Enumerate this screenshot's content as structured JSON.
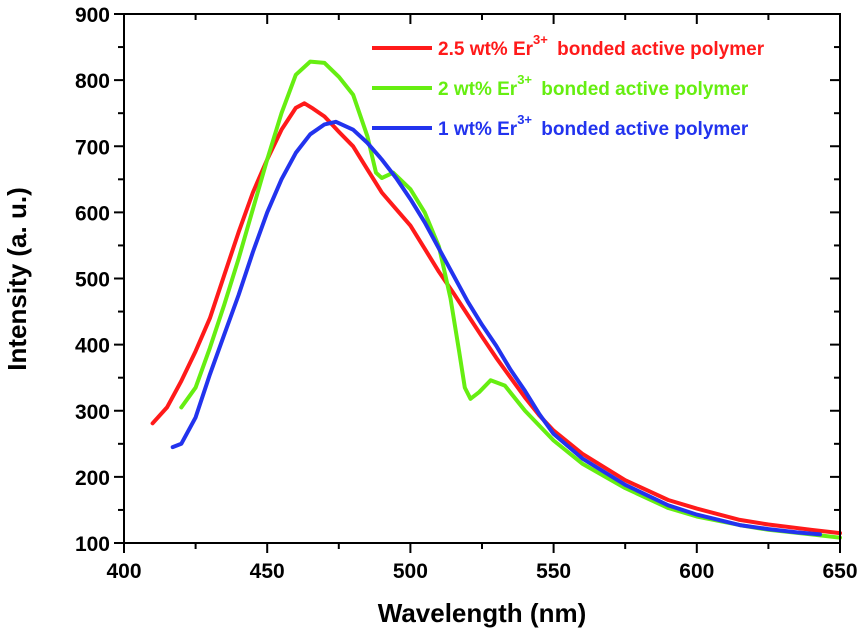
{
  "chart_data": {
    "type": "line",
    "title": "",
    "xlabel": "Wavelength (nm)",
    "ylabel": "Intensity (a. u.)",
    "xlim": [
      400,
      650
    ],
    "ylim": [
      100,
      900
    ],
    "xticks": [
      400,
      450,
      500,
      550,
      600,
      650
    ],
    "yticks": [
      100,
      200,
      300,
      400,
      500,
      600,
      700,
      800,
      900
    ],
    "grid": false,
    "legend_position": "top-right",
    "series": [
      {
        "name": "2.5 wt% Er3+ bonded active polymer",
        "label_prefix": "2.5 wt% Er",
        "label_sup": "3+",
        "label_suffix": " bonded active polymer",
        "color": "#ff1a1a",
        "x": [
          410,
          415,
          420,
          425,
          430,
          435,
          440,
          445,
          450,
          455,
          460,
          463,
          466,
          470,
          475,
          480,
          485,
          490,
          495,
          500,
          505,
          510,
          515,
          520,
          525,
          530,
          535,
          540,
          545,
          550,
          560,
          575,
          590,
          600,
          615,
          625,
          640,
          650
        ],
        "y": [
          281,
          305,
          345,
          390,
          440,
          505,
          570,
          630,
          680,
          725,
          758,
          765,
          757,
          745,
          722,
          700,
          665,
          630,
          605,
          580,
          545,
          510,
          478,
          445,
          412,
          380,
          350,
          320,
          293,
          270,
          235,
          195,
          165,
          152,
          135,
          128,
          120,
          115
        ]
      },
      {
        "name": "2 wt% Er3+ bonded active polymer",
        "label_prefix": "2 wt% Er",
        "label_sup": "3+",
        "label_suffix": " bonded active polymer",
        "color": "#66ee11",
        "x": [
          420,
          425,
          430,
          435,
          440,
          445,
          450,
          455,
          460,
          465,
          470,
          475,
          480,
          485,
          488,
          490,
          494,
          500,
          505,
          510,
          514,
          517,
          519,
          521,
          524,
          528,
          533,
          540,
          550,
          560,
          575,
          590,
          600,
          615,
          625,
          640,
          650
        ],
        "y": [
          305,
          335,
          395,
          460,
          530,
          605,
          680,
          750,
          808,
          828,
          826,
          805,
          778,
          715,
          660,
          652,
          660,
          635,
          600,
          548,
          470,
          390,
          335,
          318,
          328,
          346,
          338,
          300,
          255,
          220,
          183,
          153,
          140,
          127,
          120,
          113,
          108
        ]
      },
      {
        "name": "1 wt% Er3+ bonded active polymer",
        "label_prefix": "1 wt% Er",
        "label_sup": "3+",
        "label_suffix": " bonded active polymer",
        "color": "#2233ee",
        "x": [
          417,
          420,
          425,
          430,
          435,
          440,
          445,
          450,
          455,
          460,
          465,
          470,
          474,
          480,
          485,
          490,
          495,
          500,
          505,
          510,
          515,
          520,
          525,
          530,
          535,
          540,
          545,
          550,
          560,
          575,
          590,
          600,
          615,
          625,
          635,
          643
        ],
        "y": [
          245,
          250,
          290,
          355,
          415,
          475,
          540,
          600,
          650,
          690,
          718,
          733,
          737,
          725,
          705,
          680,
          652,
          620,
          585,
          545,
          505,
          465,
          430,
          398,
          362,
          330,
          295,
          265,
          228,
          188,
          157,
          143,
          127,
          121,
          116,
          113
        ]
      }
    ]
  }
}
